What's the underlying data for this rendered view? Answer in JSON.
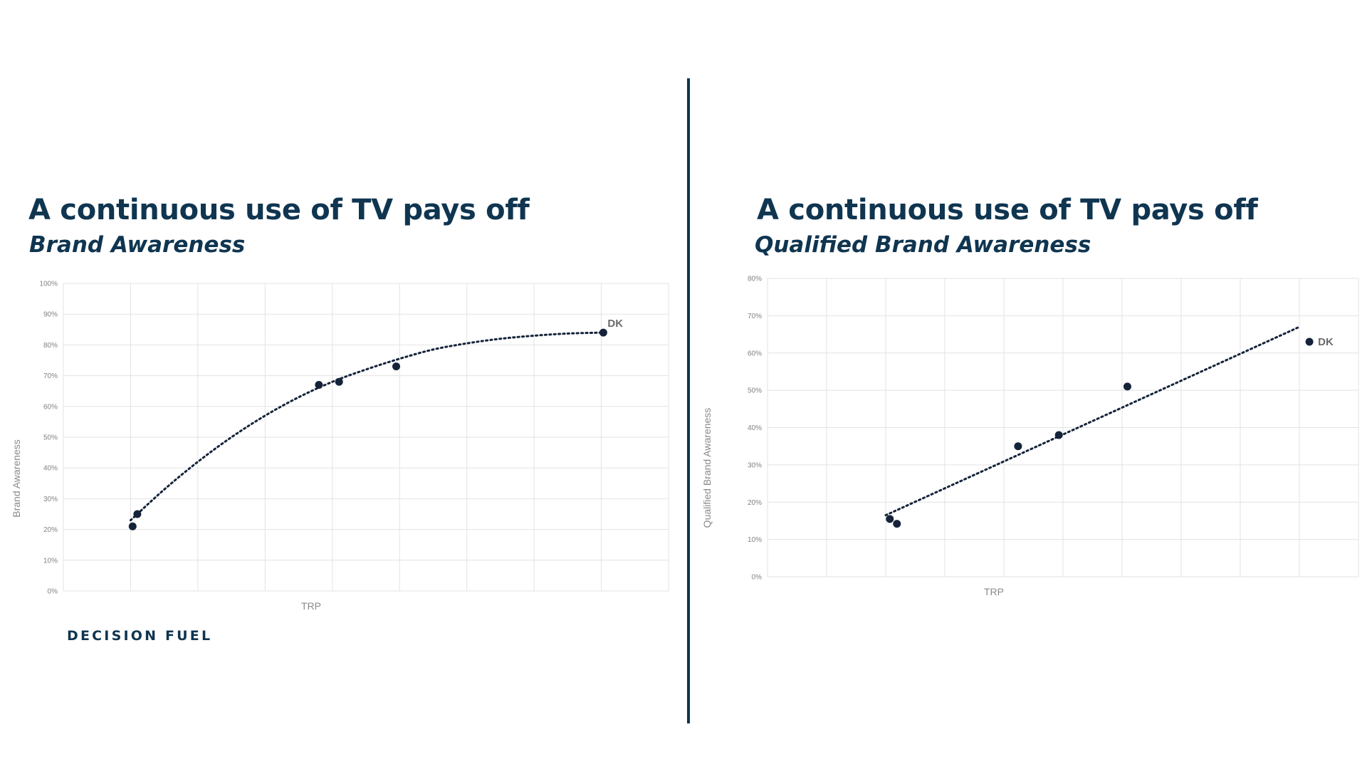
{
  "slide": {
    "divider_color": "#0f3550",
    "logo_text": "DECISION FUEL"
  },
  "left_panel": {
    "title": "A continuous use of TV pays off",
    "subtitle": "Brand Awareness"
  },
  "right_panel": {
    "title": "A continuous use of TV pays off",
    "subtitle": "Qualified Brand Awareness"
  },
  "chart_data": [
    {
      "type": "scatter",
      "title": "",
      "xlabel": "TRP",
      "ylabel": "Brand Awareness",
      "ylim": [
        0,
        100
      ],
      "yticks": [
        "0%",
        "10%",
        "20%",
        "30%",
        "40%",
        "50%",
        "60%",
        "70%",
        "80%",
        "90%",
        "100%"
      ],
      "xlim": [
        0,
        9
      ],
      "x_gridlines": 9,
      "x_tick_labels_shown": false,
      "grid": true,
      "trendline": "curved",
      "trend": [
        [
          1.0,
          23
        ],
        [
          1.5,
          33
        ],
        [
          2.0,
          42
        ],
        [
          2.5,
          50
        ],
        [
          3.0,
          57
        ],
        [
          3.5,
          63
        ],
        [
          4.0,
          68
        ],
        [
          4.5,
          72
        ],
        [
          5.0,
          75.5
        ],
        [
          5.5,
          78.5
        ],
        [
          6.0,
          80.5
        ],
        [
          6.5,
          82
        ],
        [
          7.0,
          83
        ],
        [
          7.5,
          83.7
        ],
        [
          8.0,
          84
        ]
      ],
      "points": [
        {
          "x": 1.03,
          "y": 21,
          "label": ""
        },
        {
          "x": 1.1,
          "y": 25,
          "label": ""
        },
        {
          "x": 3.8,
          "y": 67,
          "label": ""
        },
        {
          "x": 4.1,
          "y": 68,
          "label": ""
        },
        {
          "x": 4.95,
          "y": 73,
          "label": ""
        },
        {
          "x": 8.03,
          "y": 84,
          "label": "DK"
        }
      ],
      "marker_color": "#15233a"
    },
    {
      "type": "scatter",
      "title": "",
      "xlabel": "TRP",
      "ylabel": "Qualified Brand Awareness",
      "ylim": [
        0,
        80
      ],
      "yticks": [
        "0%",
        "10%",
        "20%",
        "30%",
        "40%",
        "50%",
        "60%",
        "70%",
        "80%"
      ],
      "xlim": [
        0,
        10
      ],
      "x_gridlines": 10,
      "x_tick_labels_shown": false,
      "grid": true,
      "trendline": "linear",
      "trend": [
        [
          2.0,
          16.5
        ],
        [
          9.0,
          67
        ]
      ],
      "points": [
        {
          "x": 2.07,
          "y": 15.5,
          "label": ""
        },
        {
          "x": 2.19,
          "y": 14.2,
          "label": ""
        },
        {
          "x": 4.24,
          "y": 35,
          "label": ""
        },
        {
          "x": 4.93,
          "y": 38,
          "label": ""
        },
        {
          "x": 6.09,
          "y": 51,
          "label": ""
        },
        {
          "x": 9.17,
          "y": 63,
          "label": "DK"
        }
      ],
      "marker_color": "#15233a"
    }
  ]
}
